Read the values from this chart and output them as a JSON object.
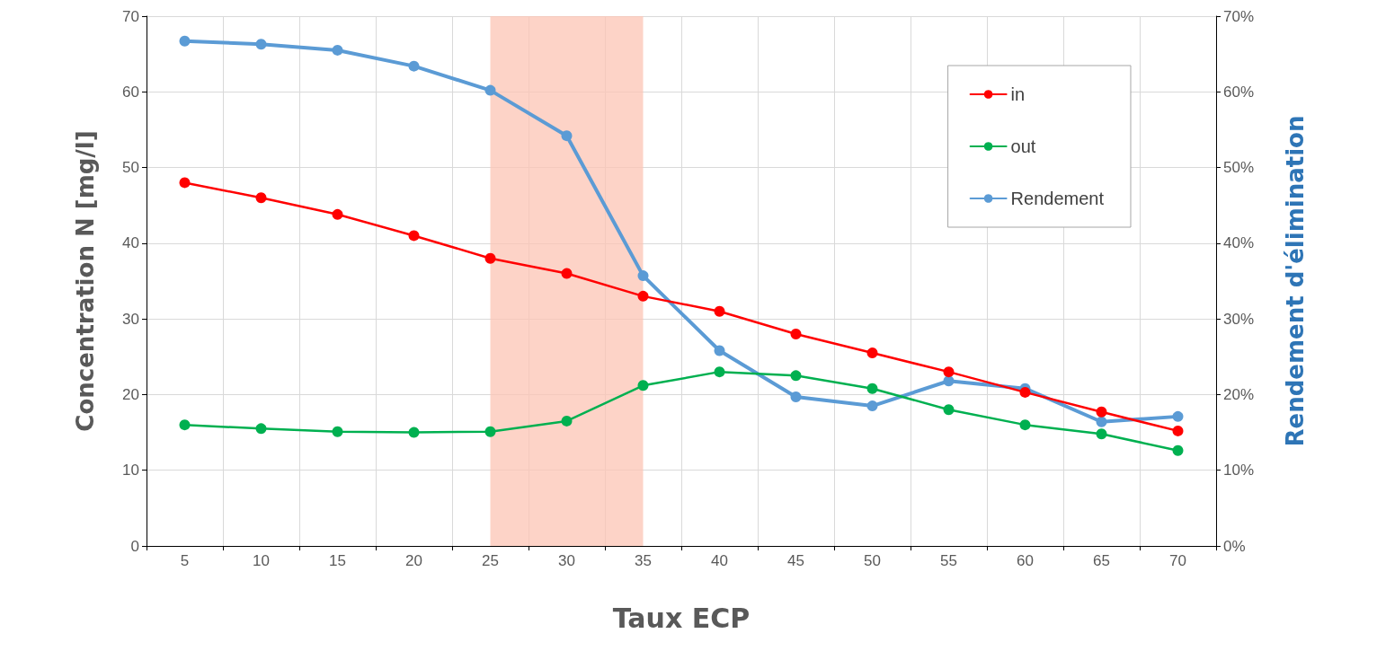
{
  "chart_data": {
    "type": "line",
    "xlabel": "Taux ECP",
    "ylabel": "Concentration N [mg/l]",
    "y2label": "Rendement d'élimination",
    "categories": [
      "5",
      "10",
      "15",
      "20",
      "25",
      "30",
      "35",
      "40",
      "45",
      "50",
      "55",
      "60",
      "65",
      "70"
    ],
    "series": [
      {
        "name": "in",
        "color": "#ff0000",
        "values": [
          48,
          46,
          43.8,
          41,
          38,
          36,
          33,
          31,
          28,
          25.5,
          23,
          20.3,
          17.7,
          15.2
        ]
      },
      {
        "name": "out",
        "color": "#00b050",
        "values": [
          16,
          15.5,
          15.1,
          15,
          15.1,
          16.5,
          21.2,
          23,
          22.5,
          20.8,
          18,
          16,
          14.8,
          12.6
        ]
      },
      {
        "name": "Rendement",
        "color": "#5b9bd5",
        "axis": "y2",
        "values": [
          66.7,
          66.3,
          65.5,
          63.4,
          60.2,
          54.2,
          35.7,
          25.8,
          19.7,
          18.5,
          21.8,
          20.8,
          16.4,
          17.1
        ]
      }
    ],
    "ylim": [
      0,
      70
    ],
    "yticks": [
      0,
      10,
      20,
      30,
      40,
      50,
      60,
      70
    ],
    "y2lim": [
      0,
      70
    ],
    "y2ticks": [
      {
        "value": 0,
        "label": "0%"
      },
      {
        "value": 10,
        "label": "10%"
      },
      {
        "value": 20,
        "label": "20%"
      },
      {
        "value": 30,
        "label": "30%"
      },
      {
        "value": 40,
        "label": "40%"
      },
      {
        "value": 50,
        "label": "50%"
      },
      {
        "value": 60,
        "label": "60%"
      },
      {
        "value": 70,
        "label": "70%"
      }
    ],
    "bands": [
      {
        "axis": "x",
        "from": "25",
        "to": "35",
        "color": "#fcc4b4"
      }
    ],
    "grid": true,
    "legend": "top right",
    "marker": "circle",
    "line_style": "solid"
  }
}
